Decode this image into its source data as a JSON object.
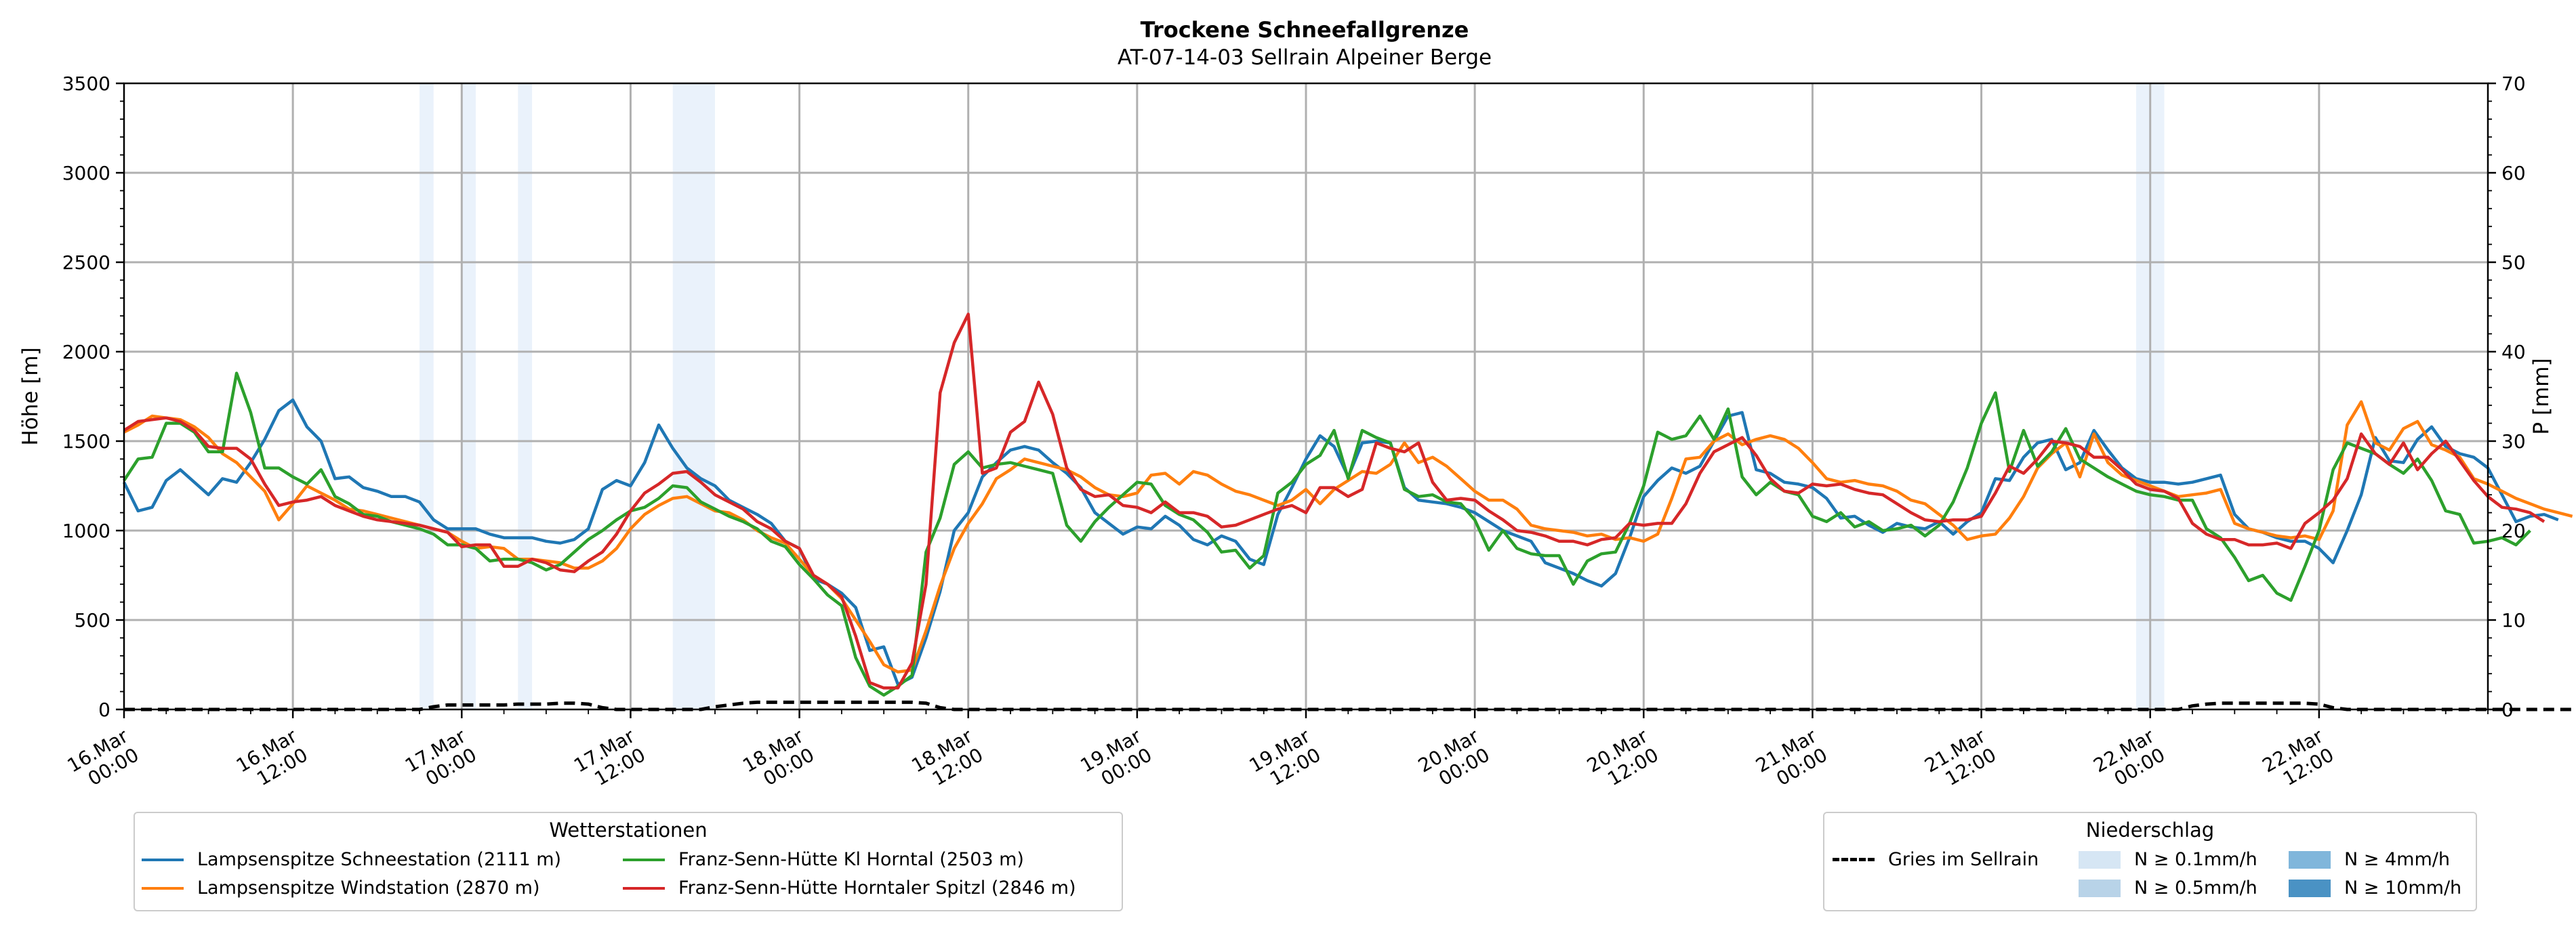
{
  "chart_data": {
    "type": "line",
    "title": "Trockene Schneefallgrenze",
    "subtitle": "AT-07-14-03 Sellrain Alpeiner Berge",
    "ylabel": "Höhe [m]",
    "y2label": "P [mm]",
    "ylim": [
      0,
      3500
    ],
    "y2lim": [
      0,
      70
    ],
    "yticks": [
      "0",
      "500",
      "1000",
      "1500",
      "2000",
      "2500",
      "3000",
      "3500"
    ],
    "y2ticks": [
      "0",
      "10",
      "20",
      "30",
      "40",
      "50",
      "60",
      "70"
    ],
    "xlim_hours": [
      0,
      168
    ],
    "xticks": [
      {
        "h": 0,
        "label": "16.Mar\n00:00"
      },
      {
        "h": 12,
        "label": "16.Mar\n12:00"
      },
      {
        "h": 24,
        "label": "17.Mar\n00:00"
      },
      {
        "h": 36,
        "label": "17.Mar\n12:00"
      },
      {
        "h": 48,
        "label": "18.Mar\n00:00"
      },
      {
        "h": 60,
        "label": "18.Mar\n12:00"
      },
      {
        "h": 72,
        "label": "19.Mar\n00:00"
      },
      {
        "h": 84,
        "label": "19.Mar\n12:00"
      },
      {
        "h": 96,
        "label": "20.Mar\n00:00"
      },
      {
        "h": 108,
        "label": "20.Mar\n12:00"
      },
      {
        "h": 120,
        "label": "21.Mar\n00:00"
      },
      {
        "h": 132,
        "label": "21.Mar\n12:00"
      },
      {
        "h": 144,
        "label": "22.Mar\n00:00"
      },
      {
        "h": 156,
        "label": "22.Mar\n12:00"
      }
    ],
    "grid": true,
    "precip_bands": [
      {
        "start_h": 21,
        "end_h": 22,
        "level": "N ≥ 0.1mm/h"
      },
      {
        "start_h": 24,
        "end_h": 25,
        "level": "N ≥ 0.1mm/h"
      },
      {
        "start_h": 28,
        "end_h": 29,
        "level": "N ≥ 0.1mm/h"
      },
      {
        "start_h": 39,
        "end_h": 42,
        "level": "N ≥ 0.1mm/h"
      },
      {
        "start_h": 143,
        "end_h": 145,
        "level": "N ≥ 0.1mm/h"
      }
    ],
    "series": [
      {
        "name": "Lampsenspitze Schneestation (2111 m)",
        "color": "#1f77b4",
        "values": [
          1270,
          1110,
          1130,
          1280,
          1340,
          1270,
          1200,
          1290,
          1270,
          1380,
          1510,
          1670,
          1730,
          1580,
          1500,
          1290,
          1300,
          1240,
          1220,
          1190,
          1190,
          1160,
          1060,
          1010,
          1010,
          1010,
          980,
          960,
          960,
          960,
          940,
          930,
          950,
          1010,
          1230,
          1280,
          1250,
          1380,
          1590,
          1460,
          1350,
          1290,
          1250,
          1170,
          1130,
          1090,
          1040,
          940,
          900,
          730,
          700,
          650,
          570,
          330,
          350,
          140,
          180,
          400,
          660,
          1000,
          1100,
          1300,
          1380,
          1450,
          1470,
          1450,
          1380,
          1320,
          1240,
          1100,
          1040,
          980,
          1020,
          1010,
          1080,
          1030,
          950,
          920,
          970,
          940,
          840,
          810,
          1090,
          1240,
          1400,
          1530,
          1470,
          1300,
          1490,
          1500,
          1490,
          1240,
          1170,
          1160,
          1150,
          1130,
          1100,
          1050,
          1000,
          970,
          940,
          820,
          790,
          760,
          720,
          690,
          760,
          960,
          1190,
          1280,
          1350,
          1320,
          1360,
          1500,
          1640,
          1660,
          1340,
          1320,
          1270,
          1260,
          1240,
          1180,
          1070,
          1080,
          1030,
          990,
          1040,
          1020,
          1010,
          1050,
          980,
          1050,
          1100,
          1290,
          1280,
          1410,
          1490,
          1510,
          1340,
          1380,
          1560,
          1450,
          1350,
          1290,
          1270,
          1270,
          1260,
          1270,
          1290,
          1310,
          1090,
          1010,
          990,
          960,
          940,
          940,
          900,
          820,
          1000,
          1200,
          1520,
          1390,
          1380,
          1510,
          1580,
          1470,
          1430,
          1410,
          1350,
          1200,
          1050,
          1080,
          1090,
          1060
        ]
      },
      {
        "name": "Lampsenspitze Windstation (2870 m)",
        "color": "#ff7f0e",
        "values": [
          1550,
          1590,
          1640,
          1630,
          1620,
          1580,
          1520,
          1430,
          1380,
          1300,
          1220,
          1060,
          1150,
          1250,
          1210,
          1170,
          1120,
          1110,
          1090,
          1070,
          1050,
          1030,
          1010,
          990,
          940,
          900,
          910,
          900,
          840,
          840,
          830,
          820,
          790,
          790,
          830,
          900,
          1010,
          1090,
          1140,
          1180,
          1190,
          1150,
          1110,
          1100,
          1060,
          1000,
          960,
          930,
          840,
          750,
          700,
          620,
          500,
          380,
          250,
          210,
          220,
          440,
          690,
          900,
          1040,
          1150,
          1290,
          1340,
          1400,
          1380,
          1360,
          1340,
          1300,
          1240,
          1200,
          1190,
          1210,
          1310,
          1320,
          1260,
          1330,
          1310,
          1260,
          1220,
          1200,
          1170,
          1140,
          1170,
          1230,
          1150,
          1230,
          1280,
          1330,
          1320,
          1370,
          1490,
          1380,
          1410,
          1360,
          1290,
          1220,
          1170,
          1170,
          1120,
          1030,
          1010,
          1000,
          990,
          970,
          980,
          950,
          960,
          940,
          980,
          1180,
          1400,
          1410,
          1500,
          1540,
          1480,
          1510,
          1530,
          1510,
          1460,
          1380,
          1290,
          1270,
          1280,
          1260,
          1250,
          1220,
          1170,
          1150,
          1090,
          1030,
          950,
          970,
          980,
          1070,
          1190,
          1350,
          1430,
          1490,
          1300,
          1540,
          1380,
          1310,
          1280,
          1250,
          1220,
          1190,
          1200,
          1210,
          1230,
          1040,
          1010,
          990,
          970,
          960,
          970,
          950,
          1110,
          1590,
          1720,
          1490,
          1450,
          1570,
          1610,
          1480,
          1450,
          1410,
          1290,
          1260,
          1220,
          1180,
          1150,
          1120,
          1100,
          1080
        ]
      },
      {
        "name": "Franz-Senn-Hütte Kl Horntal (2503 m)",
        "color": "#2ca02c",
        "values": [
          1280,
          1400,
          1410,
          1600,
          1600,
          1550,
          1440,
          1440,
          1880,
          1660,
          1350,
          1350,
          1300,
          1260,
          1340,
          1190,
          1150,
          1090,
          1080,
          1050,
          1030,
          1010,
          980,
          920,
          920,
          900,
          830,
          840,
          840,
          820,
          780,
          810,
          880,
          950,
          1000,
          1060,
          1110,
          1130,
          1180,
          1250,
          1240,
          1160,
          1120,
          1080,
          1050,
          1010,
          940,
          910,
          810,
          730,
          640,
          580,
          290,
          130,
          80,
          130,
          190,
          880,
          1070,
          1370,
          1440,
          1350,
          1370,
          1380,
          1360,
          1340,
          1320,
          1030,
          940,
          1050,
          1130,
          1200,
          1270,
          1260,
          1140,
          1090,
          1060,
          990,
          880,
          890,
          790,
          860,
          1210,
          1270,
          1370,
          1420,
          1560,
          1290,
          1560,
          1520,
          1490,
          1230,
          1190,
          1200,
          1160,
          1150,
          1060,
          890,
          1000,
          900,
          870,
          860,
          860,
          700,
          830,
          870,
          880,
          1040,
          1250,
          1550,
          1510,
          1530,
          1640,
          1510,
          1680,
          1300,
          1200,
          1270,
          1220,
          1200,
          1080,
          1050,
          1100,
          1020,
          1050,
          1000,
          1010,
          1030,
          970,
          1030,
          1160,
          1350,
          1600,
          1770,
          1330,
          1560,
          1360,
          1440,
          1570,
          1400,
          1350,
          1300,
          1260,
          1220,
          1200,
          1190,
          1170,
          1170,
          1010,
          960,
          850,
          720,
          750,
          650,
          610,
          800,
          1000,
          1340,
          1490,
          1460,
          1430,
          1370,
          1320,
          1400,
          1280,
          1110,
          1090,
          930,
          940,
          960,
          920,
          1000
        ]
      },
      {
        "name": "Franz-Senn-Hütte Horntaler Spitzl (2846 m)",
        "color": "#d62728",
        "values": [
          1560,
          1610,
          1620,
          1630,
          1610,
          1560,
          1470,
          1460,
          1460,
          1400,
          1260,
          1140,
          1160,
          1170,
          1190,
          1140,
          1110,
          1080,
          1060,
          1050,
          1040,
          1030,
          1010,
          990,
          910,
          920,
          920,
          800,
          800,
          840,
          820,
          780,
          770,
          830,
          880,
          980,
          1110,
          1210,
          1260,
          1320,
          1330,
          1270,
          1200,
          1160,
          1120,
          1050,
          1010,
          940,
          900,
          750,
          700,
          630,
          410,
          150,
          120,
          120,
          260,
          700,
          1770,
          2050,
          2210,
          1320,
          1350,
          1550,
          1610,
          1830,
          1650,
          1350,
          1230,
          1190,
          1200,
          1140,
          1130,
          1100,
          1160,
          1100,
          1100,
          1080,
          1020,
          1030,
          1060,
          1090,
          1120,
          1140,
          1100,
          1240,
          1240,
          1190,
          1230,
          1490,
          1460,
          1440,
          1490,
          1270,
          1170,
          1180,
          1170,
          1110,
          1060,
          1000,
          990,
          970,
          940,
          940,
          920,
          950,
          960,
          1040,
          1030,
          1040,
          1040,
          1150,
          1320,
          1440,
          1480,
          1520,
          1420,
          1290,
          1220,
          1210,
          1260,
          1250,
          1260,
          1230,
          1210,
          1200,
          1150,
          1100,
          1060,
          1050,
          1060,
          1060,
          1080,
          1210,
          1360,
          1320,
          1400,
          1500,
          1490,
          1470,
          1410,
          1410,
          1340,
          1260,
          1230,
          1220,
          1180,
          1040,
          980,
          950,
          950,
          920,
          920,
          930,
          900,
          1040,
          1100,
          1170,
          1290,
          1540,
          1430,
          1370,
          1490,
          1340,
          1430,
          1500,
          1390,
          1280,
          1190,
          1130,
          1120,
          1100,
          1050
        ]
      },
      {
        "name": "Gries im Sellrain",
        "axis": "right",
        "style": "dashed",
        "color": "#000000",
        "values": [
          0,
          0,
          0,
          0,
          0,
          0,
          0,
          0,
          0,
          0,
          0,
          0,
          0,
          0,
          0,
          0,
          0,
          0,
          0,
          0,
          0,
          0,
          0.3,
          0.5,
          0.5,
          0.5,
          0.5,
          0.5,
          0.6,
          0.6,
          0.6,
          0.7,
          0.7,
          0.6,
          0.2,
          0,
          0,
          0,
          0,
          0,
          0,
          0,
          0.3,
          0.5,
          0.7,
          0.8,
          0.8,
          0.8,
          0.8,
          0.8,
          0.8,
          0.8,
          0.8,
          0.8,
          0.8,
          0.8,
          0.8,
          0.7,
          0.2,
          0,
          0,
          0,
          0,
          0,
          0,
          0,
          0,
          0,
          0,
          0,
          0,
          0,
          0,
          0,
          0,
          0,
          0,
          0,
          0,
          0,
          0,
          0,
          0,
          0,
          0,
          0,
          0,
          0,
          0,
          0,
          0,
          0,
          0,
          0,
          0,
          0,
          0,
          0,
          0,
          0,
          0,
          0,
          0,
          0,
          0,
          0,
          0,
          0,
          0,
          0,
          0,
          0,
          0,
          0,
          0,
          0,
          0,
          0,
          0,
          0,
          0,
          0,
          0,
          0,
          0,
          0,
          0,
          0,
          0,
          0,
          0,
          0,
          0,
          0,
          0,
          0,
          0,
          0,
          0,
          0,
          0,
          0,
          0,
          0,
          0,
          0,
          0,
          0.4,
          0.6,
          0.7,
          0.7,
          0.7,
          0.7,
          0.7,
          0.7,
          0.7,
          0.6,
          0.2,
          0,
          0,
          0,
          0,
          0,
          0,
          0,
          0,
          0,
          0,
          0,
          0,
          0,
          0,
          0,
          0,
          0,
          0,
          0
        ]
      }
    ],
    "legend_stations": {
      "title": "Wetterstationen",
      "entries": [
        "Lampsenspitze Schneestation (2111 m)",
        "Franz-Senn-Hütte Kl Horntal (2503 m)",
        "Lampsenspitze Windstation (2870 m)",
        "Franz-Senn-Hütte Horntaler Spitzl (2846 m)"
      ],
      "placement": "bottom-left"
    },
    "legend_precip": {
      "title": "Niederschlag",
      "placement": "bottom-right",
      "entries": [
        {
          "label": "Gries im Sellrain",
          "kind": "dashed-line",
          "color": "#000000"
        },
        {
          "label": "N ≥ 0.1mm/h",
          "kind": "patch",
          "color": "#d6e6f4"
        },
        {
          "label": "N ≥ 0.5mm/h",
          "kind": "patch",
          "color": "#b8d3e8"
        },
        {
          "label": "N ≥ 4mm/h",
          "kind": "patch",
          "color": "#80b6db"
        },
        {
          "label": "N ≥ 10mm/h",
          "kind": "patch",
          "color": "#4a92c4"
        }
      ]
    },
    "band_color": "#eaf2fb",
    "grid_color": "#b0b0b0"
  }
}
